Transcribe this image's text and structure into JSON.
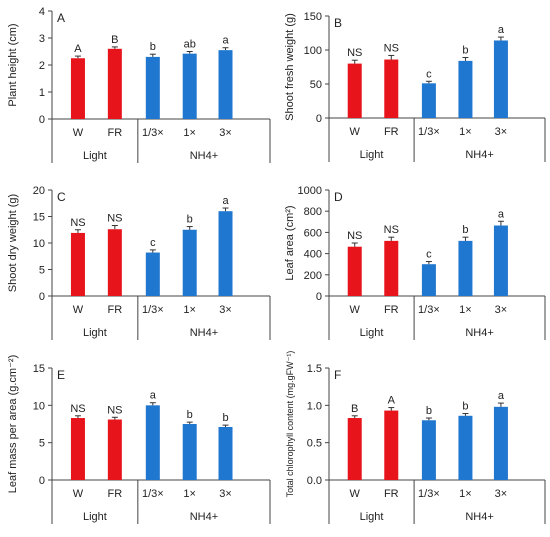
{
  "colors": {
    "light_bar": "#e8141b",
    "nh4_bar": "#1f77d0",
    "axis": "#444444",
    "text": "#222222"
  },
  "group_labels": {
    "light": "Light",
    "nh4": "NH4+"
  },
  "chart_data": [
    {
      "type": "bar",
      "panel_label": "A",
      "ylabel": "Plant height (cm)",
      "ylim": [
        0,
        4
      ],
      "yticks": [
        "0",
        "1",
        "2",
        "3",
        "4"
      ],
      "ytick_values": [
        0,
        1,
        2,
        3,
        4
      ],
      "categories": [
        "W",
        "FR",
        "1/3×",
        "1×",
        "3×"
      ],
      "groups": [
        "Light",
        "Light",
        "NH4+",
        "NH4+",
        "NH4+"
      ],
      "values": [
        2.25,
        2.6,
        2.3,
        2.42,
        2.55
      ],
      "errors": [
        0.08,
        0.07,
        0.1,
        0.08,
        0.09
      ],
      "annotations": [
        "A",
        "B",
        "b",
        "ab",
        "a"
      ]
    },
    {
      "type": "bar",
      "panel_label": "B",
      "ylabel": "Shoot fresh weight (g)",
      "ylim": [
        0,
        150
      ],
      "yticks": [
        "0",
        "50",
        "100",
        "150"
      ],
      "ytick_values": [
        0,
        50,
        100,
        150
      ],
      "categories": [
        "W",
        "FR",
        "1/3×",
        "1×",
        "3×"
      ],
      "groups": [
        "Light",
        "Light",
        "NH4+",
        "NH4+",
        "NH4+"
      ],
      "values": [
        80,
        86,
        51,
        84,
        114
      ],
      "errors": [
        5,
        6,
        3,
        5,
        5
      ],
      "annotations": [
        "NS",
        "NS",
        "c",
        "b",
        "a"
      ]
    },
    {
      "type": "bar",
      "panel_label": "C",
      "ylabel": "Shoot dry weight (g)",
      "ylim": [
        0,
        20
      ],
      "yticks": [
        "0",
        "5",
        "10",
        "15",
        "20"
      ],
      "ytick_values": [
        0,
        5,
        10,
        15,
        20
      ],
      "categories": [
        "W",
        "FR",
        "1/3×",
        "1×",
        "3×"
      ],
      "groups": [
        "Light",
        "Light",
        "NH4+",
        "NH4+",
        "NH4+"
      ],
      "values": [
        11.9,
        12.6,
        8.2,
        12.5,
        16.0
      ],
      "errors": [
        0.6,
        0.7,
        0.5,
        0.6,
        0.6
      ],
      "annotations": [
        "NS",
        "NS",
        "c",
        "b",
        "a"
      ]
    },
    {
      "type": "bar",
      "panel_label": "D",
      "ylabel": "Leaf area (cm²)",
      "ylim": [
        0,
        1000
      ],
      "yticks": [
        "0",
        "200",
        "400",
        "600",
        "800",
        "1000"
      ],
      "ytick_values": [
        0,
        200,
        400,
        600,
        800,
        1000
      ],
      "categories": [
        "W",
        "FR",
        "1/3×",
        "1×",
        "3×"
      ],
      "groups": [
        "Light",
        "Light",
        "NH4+",
        "NH4+",
        "NH4+"
      ],
      "values": [
        465,
        520,
        300,
        520,
        665
      ],
      "errors": [
        35,
        35,
        25,
        35,
        40
      ],
      "annotations": [
        "NS",
        "NS",
        "c",
        "b",
        "a"
      ]
    },
    {
      "type": "bar",
      "panel_label": "E",
      "ylabel": "Leaf mass per area (g.cm⁻²)",
      "ylim": [
        0,
        15
      ],
      "yticks": [
        "0",
        "5",
        "10",
        "15"
      ],
      "ytick_values": [
        0,
        5,
        10,
        15
      ],
      "categories": [
        "W",
        "FR",
        "1/3×",
        "1×",
        "3×"
      ],
      "groups": [
        "Light",
        "Light",
        "NH4+",
        "NH4+",
        "NH4+"
      ],
      "values": [
        8.3,
        8.1,
        10.0,
        7.5,
        7.1
      ],
      "errors": [
        0.3,
        0.3,
        0.35,
        0.25,
        0.25
      ],
      "annotations": [
        "NS",
        "NS",
        "a",
        "b",
        "b"
      ]
    },
    {
      "type": "bar",
      "panel_label": "F",
      "ylabel": "Total chlorophyll content (mg.gFW⁻¹)",
      "ylim": [
        0,
        1.5
      ],
      "yticks": [
        "0.0",
        "0.5",
        "1.0",
        "1.5"
      ],
      "ytick_values": [
        0,
        0.5,
        1.0,
        1.5
      ],
      "categories": [
        "W",
        "FR",
        "1/3×",
        "1×",
        "3×"
      ],
      "groups": [
        "Light",
        "Light",
        "NH4+",
        "NH4+",
        "NH4+"
      ],
      "values": [
        0.83,
        0.93,
        0.8,
        0.86,
        0.98
      ],
      "errors": [
        0.03,
        0.04,
        0.03,
        0.03,
        0.05
      ],
      "annotations": [
        "B",
        "A",
        "b",
        "b",
        "a"
      ]
    }
  ]
}
